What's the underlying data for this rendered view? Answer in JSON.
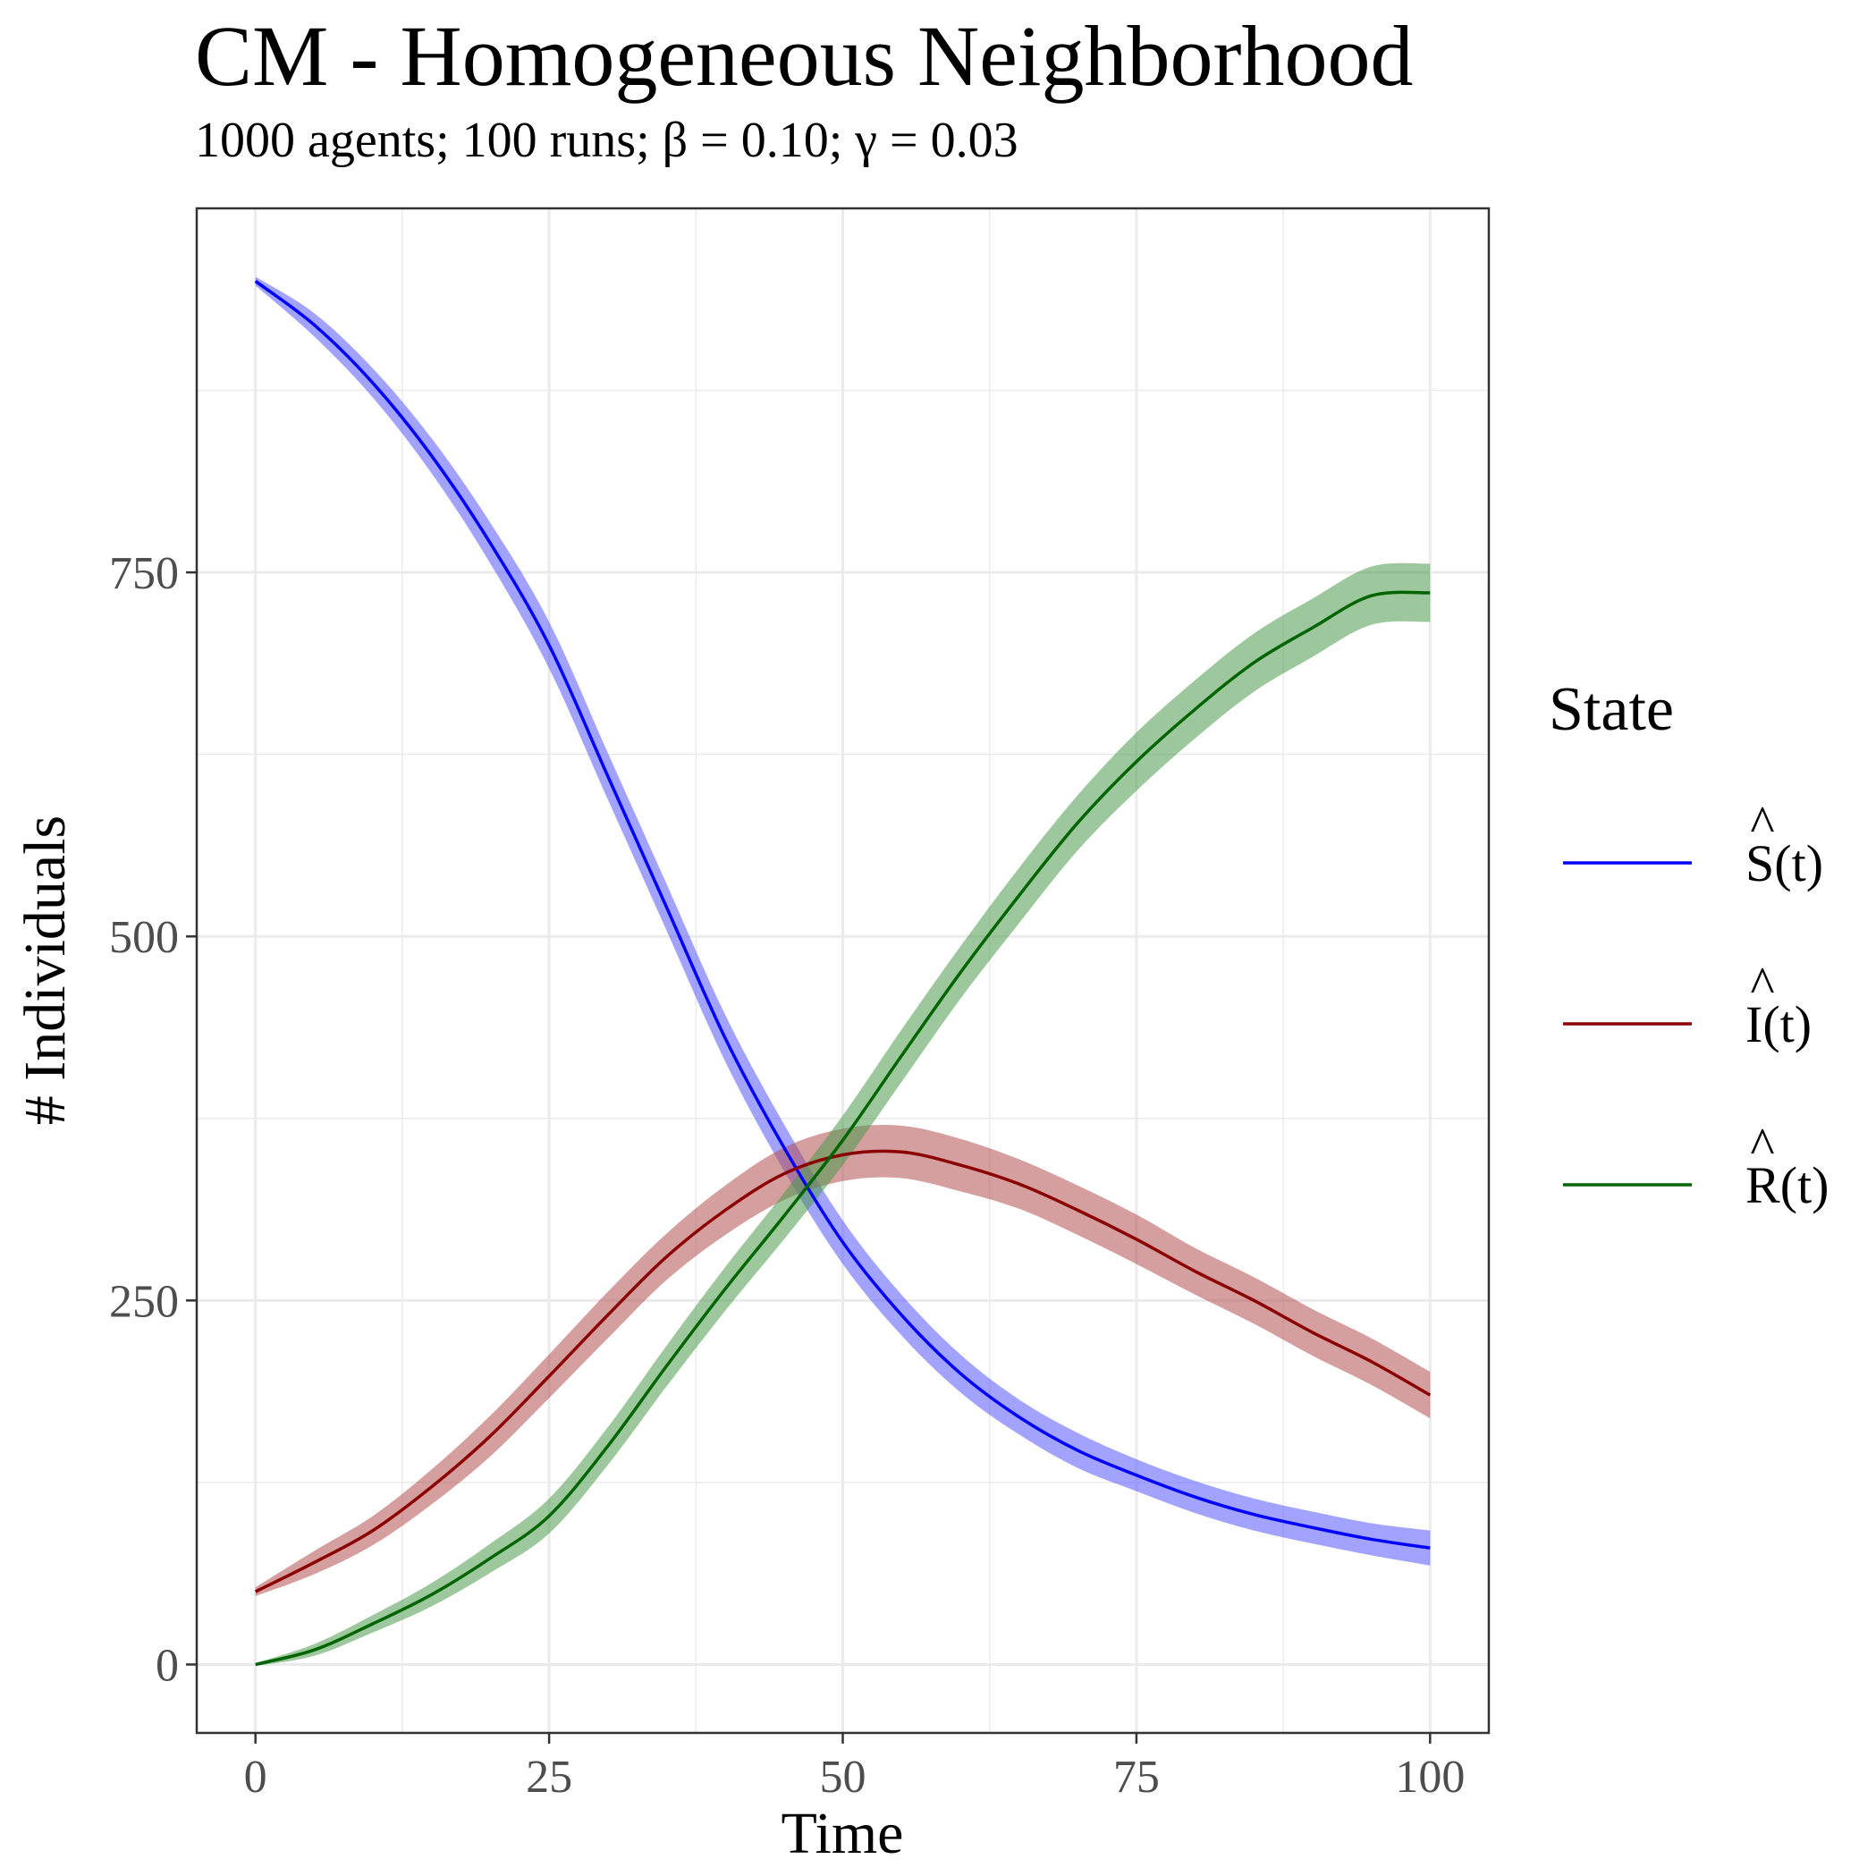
{
  "chart_data": {
    "type": "line",
    "title": "CM - Homogeneous Neighborhood",
    "subtitle": "1000 agents; 100 runs; β = 0.10; γ = 0.03",
    "xlabel": "Time",
    "ylabel": "# Individuals",
    "xlim": [
      -5,
      105
    ],
    "ylim": [
      -47,
      1000
    ],
    "x_ticks": [
      0,
      25,
      50,
      75,
      100
    ],
    "x_tick_labels": [
      "0",
      "25",
      "50",
      "75",
      "100"
    ],
    "y_ticks": [
      0,
      250,
      500,
      750
    ],
    "y_tick_labels": [
      "0",
      "250",
      "500",
      "750"
    ],
    "grid": true,
    "legend_title": "State",
    "legend_position": "right",
    "x": [
      0,
      5,
      10,
      15,
      20,
      25,
      30,
      35,
      40,
      45,
      50,
      55,
      60,
      65,
      70,
      75,
      80,
      85,
      90,
      95,
      100
    ],
    "series": [
      {
        "name": "S(t)",
        "legend_base": "S",
        "legend_suffix": "(t)",
        "color": "#0000ff",
        "band_color": "#5555ff",
        "values": [
          950,
          920,
          880,
          830,
          770,
          700,
          610,
          520,
          430,
          355,
          290,
          240,
          200,
          170,
          147,
          130,
          115,
          103,
          94,
          86,
          80
        ],
        "band_halfwidth": [
          3,
          8,
          10,
          12,
          14,
          16,
          16,
          16,
          16,
          16,
          15,
          14,
          13,
          12,
          12,
          11,
          11,
          11,
          11,
          11,
          12
        ]
      },
      {
        "name": "I(t)",
        "legend_base": "I",
        "legend_suffix": "(t)",
        "color": "#8b0000",
        "band_color": "#b35050",
        "values": [
          50,
          70,
          92,
          122,
          157,
          198,
          240,
          280,
          312,
          337,
          350,
          352,
          343,
          330,
          312,
          292,
          270,
          250,
          228,
          208,
          185
        ],
        "band_halfwidth": [
          3,
          8,
          10,
          12,
          14,
          15,
          16,
          16,
          17,
          18,
          18,
          18,
          18,
          17,
          17,
          17,
          16,
          16,
          16,
          16,
          16
        ]
      },
      {
        "name": "R(t)",
        "legend_base": "R",
        "legend_suffix": "(t)",
        "color": "#006400",
        "band_color": "#4c9a4c",
        "values": [
          0,
          10,
          28,
          48,
          73,
          102,
          150,
          205,
          258,
          308,
          360,
          418,
          475,
          528,
          578,
          620,
          656,
          688,
          712,
          734,
          736
        ],
        "band_halfwidth": [
          1,
          4,
          6,
          8,
          10,
          12,
          13,
          14,
          15,
          16,
          17,
          18,
          18,
          19,
          19,
          20,
          20,
          20,
          20,
          20,
          20
        ]
      }
    ]
  }
}
